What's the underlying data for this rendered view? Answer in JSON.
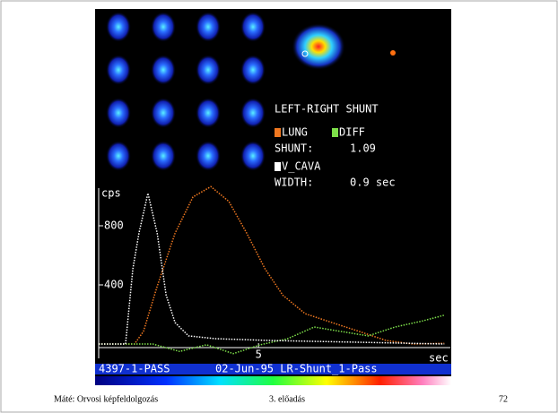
{
  "chart_data": {
    "type": "line",
    "title": "LEFT-RIGHT SHUNT",
    "y_label": "cps",
    "x_label": "sec",
    "xlim": [
      0,
      11
    ],
    "ylim": [
      -100,
      1100
    ],
    "yticks": [
      400,
      800
    ],
    "xticks": [
      5
    ],
    "series": [
      {
        "name": "LUNG",
        "color": "#f07820",
        "x": [
          0,
          1.12,
          1.4,
          1.83,
          2.39,
          2.95,
          3.51,
          4.07,
          4.63,
          5.2,
          5.76,
          6.46,
          7.3,
          8.15,
          8.99,
          9.83,
          10.81
        ],
        "values": [
          0,
          0,
          85,
          390,
          750,
          995,
          1065,
          965,
          750,
          510,
          330,
          205,
          145,
          85,
          24,
          0,
          5
        ]
      },
      {
        "name": "DIFF",
        "color": "#7ee04a",
        "x": [
          0,
          1.69,
          2.53,
          3.37,
          4.21,
          5.06,
          5.9,
          6.74,
          7.58,
          8.43,
          9.27,
          10.11,
          10.81
        ],
        "values": [
          0,
          0,
          -50,
          -5,
          -65,
          -5,
          35,
          115,
          85,
          55,
          115,
          155,
          195
        ]
      },
      {
        "name": "V_CAVA",
        "color": "#ffffff",
        "x": [
          0,
          0.84,
          1.07,
          1.26,
          1.54,
          1.83,
          2.11,
          2.39,
          2.81,
          3.65,
          5.34,
          8.15,
          10.81
        ],
        "values": [
          0,
          0,
          510,
          750,
          1020,
          750,
          330,
          145,
          55,
          36,
          24,
          12,
          0
        ]
      }
    ]
  },
  "results": {
    "shunt_label": "SHUNT:",
    "shunt_value": "1.09",
    "width_label": "WIDTH:",
    "width_value": "0.9 sec"
  },
  "status": {
    "left": "4397-1-PASS",
    "right": "02-Jun-95 LR-Shunt_1-Pass"
  },
  "footer": {
    "author": "Máté: Orvosi képfeldolgozás",
    "lecture": "3. előadás",
    "page": "72"
  }
}
